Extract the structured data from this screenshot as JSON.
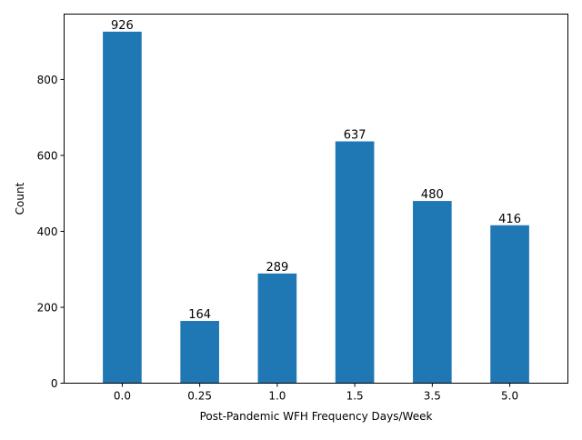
{
  "chart_data": {
    "type": "bar",
    "categories": [
      "0.0",
      "0.25",
      "1.0",
      "1.5",
      "3.5",
      "5.0"
    ],
    "values": [
      926,
      164,
      289,
      637,
      480,
      416
    ],
    "data_labels": [
      "926",
      "164",
      "289",
      "637",
      "480",
      "416"
    ],
    "title": "",
    "xlabel": "Post-Pandemic WFH Frequency Days/Week",
    "ylabel": "Count",
    "ylim": [
      0,
      972.3
    ],
    "yticks": [
      0,
      200,
      400,
      600,
      800
    ],
    "ytick_labels": [
      "0",
      "200",
      "400",
      "600",
      "800"
    ],
    "grid": false,
    "legend": "none",
    "bar_color": "#1f77b4"
  }
}
